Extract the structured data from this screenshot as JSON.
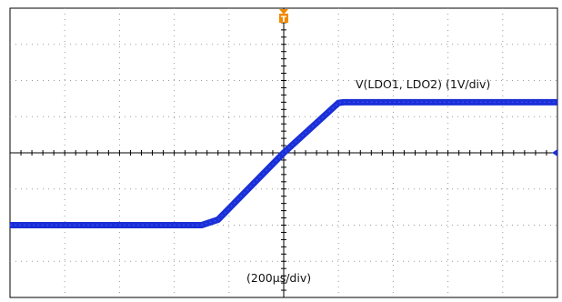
{
  "chart_data": {
    "type": "line",
    "title": "",
    "xlabel": "(200µs/div)",
    "ylabel": "",
    "grid": true,
    "divisions": {
      "x": 10,
      "y": 8
    },
    "xlim": [
      -5,
      5
    ],
    "ylim": [
      -4,
      4
    ],
    "series": [
      {
        "name": "V(LDO1, LDO2) (1V/div)",
        "color": "#1a2fd6",
        "x": [
          -5.0,
          -1.5,
          -1.2,
          0.0,
          1.0,
          1.1,
          5.0
        ],
        "y": [
          -2.0,
          -2.0,
          -1.85,
          0.0,
          1.38,
          1.4,
          1.4
        ]
      }
    ],
    "trigger_marker": {
      "label": "T",
      "color": "#f28a00"
    },
    "level_marker": {
      "color": "#1a2fd6"
    }
  }
}
